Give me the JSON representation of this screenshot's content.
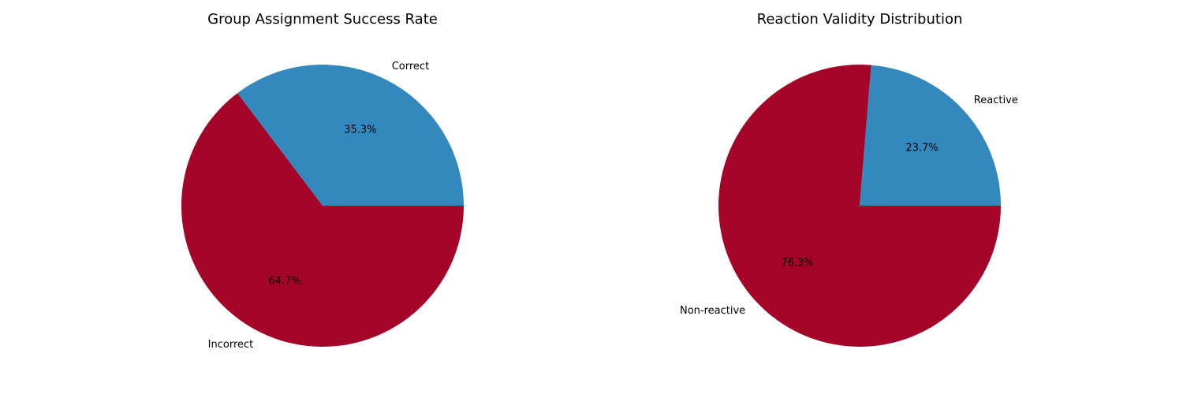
{
  "chart_data": [
    {
      "type": "pie",
      "title": "Group Assignment Success Rate",
      "labels": [
        "Correct",
        "Incorrect"
      ],
      "values": [
        35.3,
        64.7
      ],
      "value_labels": [
        "35.3%",
        "64.7%"
      ],
      "colors": [
        "#3389bd",
        "#a50429"
      ],
      "start_angle_deg": 0,
      "direction": "counterclockwise"
    },
    {
      "type": "pie",
      "title": "Reaction Validity Distribution",
      "labels": [
        "Reactive",
        "Non-reactive"
      ],
      "values": [
        23.7,
        76.3
      ],
      "value_labels": [
        "23.7%",
        "76.3%"
      ],
      "colors": [
        "#3389bd",
        "#a50429"
      ],
      "start_angle_deg": 0,
      "direction": "counterclockwise"
    }
  ]
}
